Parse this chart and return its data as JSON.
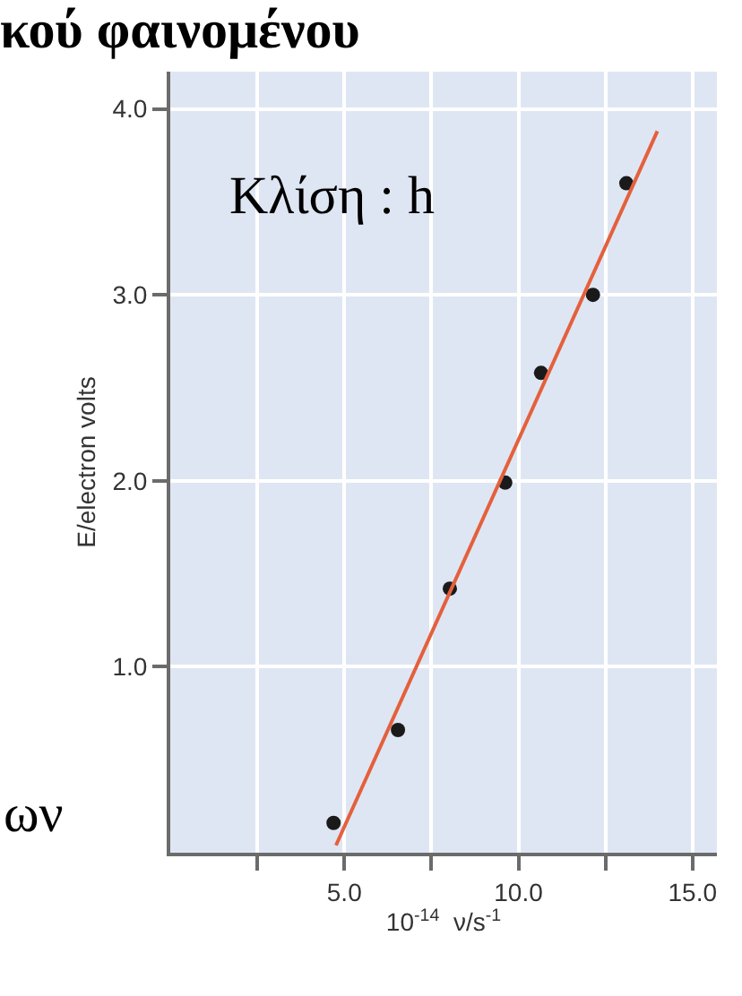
{
  "chart_data": {
    "type": "scatter",
    "title": "κού φαινομένου",
    "xlabel": "10$^{-14}$  ν/s$^{-1}$",
    "ylabel": "E/electron volts",
    "annotations": [
      "Κλίση : h",
      "ων"
    ],
    "series": [
      {
        "color": "#1a1a1a",
        "marker": "circle",
        "x": [
          4.69,
          6.54,
          8.03,
          9.62,
          10.65,
          12.14,
          13.1
        ],
        "values": [
          0.16,
          0.66,
          1.42,
          1.99,
          2.58,
          3.0,
          3.6
        ]
      },
      {
        "type": "line",
        "color": "#e4603c",
        "marker": "none",
        "line_style": "solid",
        "x": [
          4.76,
          13.99
        ],
        "values": [
          0.04,
          3.88
        ]
      }
    ],
    "xlim": [
      0,
      15.7
    ],
    "ylim": [
      0,
      4.2
    ],
    "xticks": [
      {
        "value": 2.5,
        "label": null
      },
      {
        "value": 5,
        "label": "5.0"
      },
      {
        "value": 7.5,
        "label": null
      },
      {
        "value": 10,
        "label": "10.0"
      },
      {
        "value": 12.5,
        "label": null
      },
      {
        "value": 15,
        "label": "15.0"
      }
    ],
    "yticks": [
      {
        "value": 1,
        "label": "1.0"
      },
      {
        "value": 2,
        "label": "2.0"
      },
      {
        "value": 3,
        "label": "3.0"
      },
      {
        "value": 4,
        "label": "4.0"
      }
    ],
    "grid": true
  }
}
